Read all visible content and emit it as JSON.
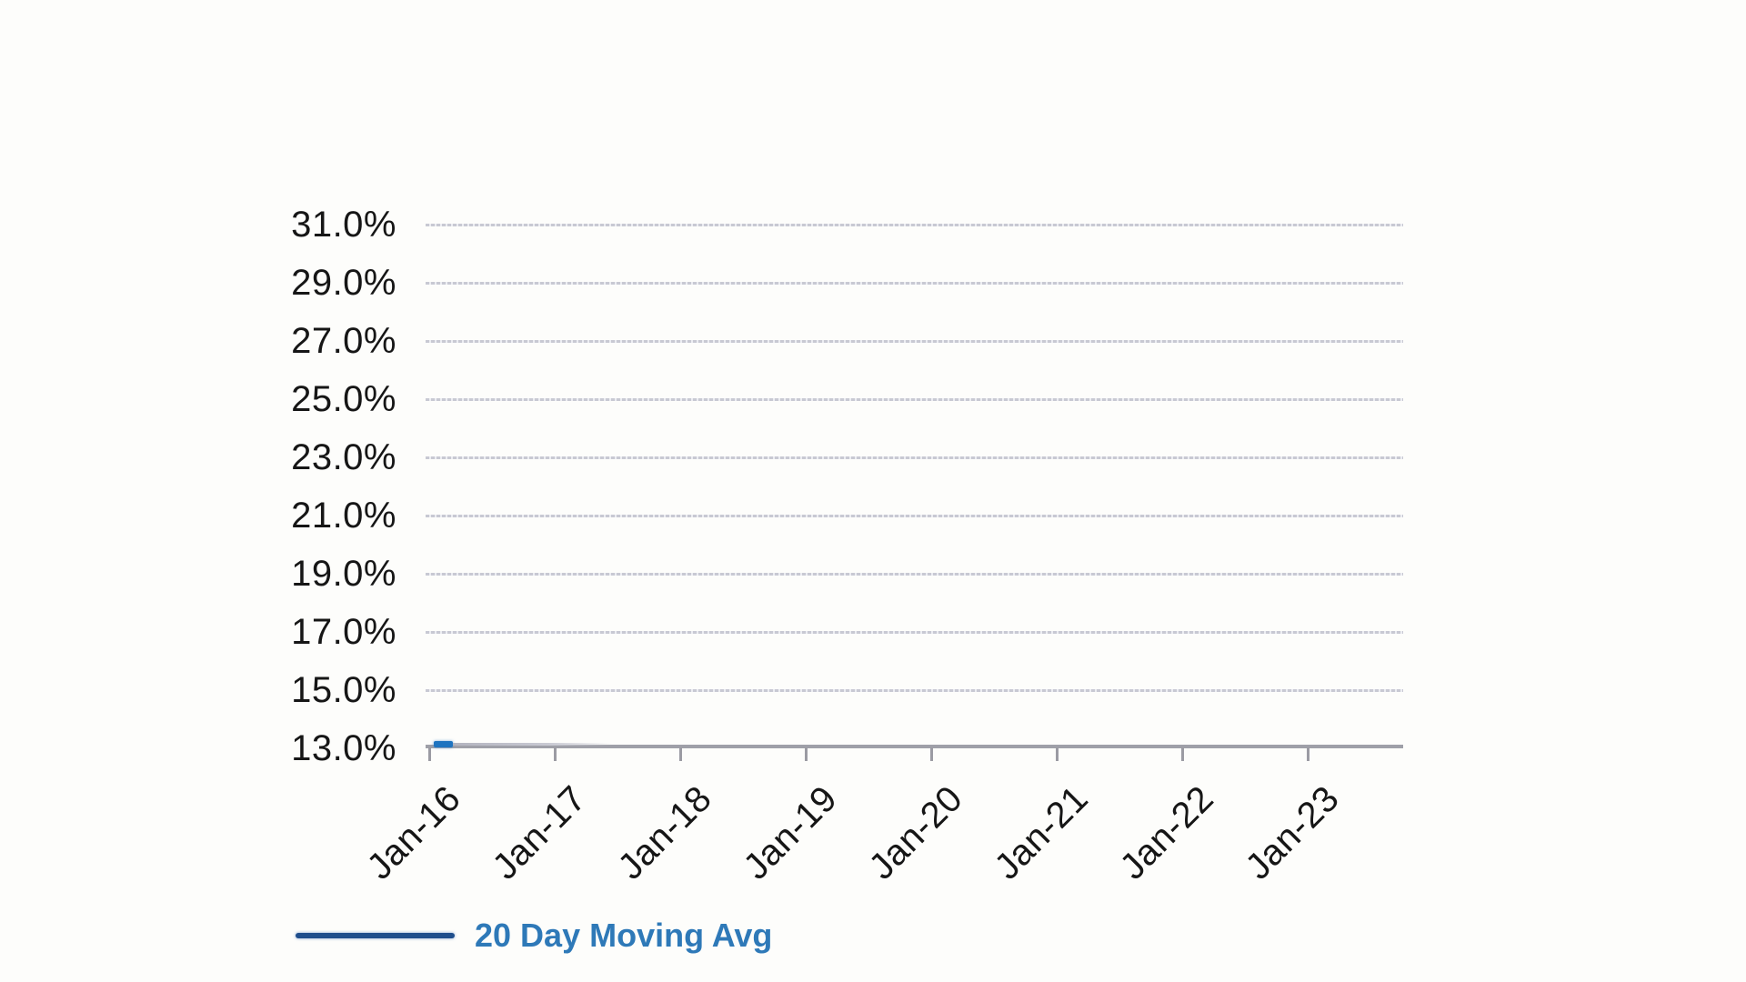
{
  "chart_data": {
    "type": "line",
    "title": "",
    "xlabel": "",
    "ylabel": "",
    "x_categories": [
      "Jan-16",
      "Jan-17",
      "Jan-18",
      "Jan-19",
      "Jan-20",
      "Jan-21",
      "Jan-22",
      "Jan-23"
    ],
    "y_tick_labels": [
      "31.0%",
      "29.0%",
      "27.0%",
      "25.0%",
      "23.0%",
      "21.0%",
      "19.0%",
      "17.0%",
      "15.0%",
      "13.0%"
    ],
    "y_tick_values": [
      31.0,
      29.0,
      27.0,
      25.0,
      23.0,
      21.0,
      19.0,
      17.0,
      15.0,
      13.0
    ],
    "ylim": [
      13.0,
      31.0
    ],
    "grid": "horizontal-only",
    "legend_position": "bottom-left",
    "series": [
      {
        "name": "20 Day Moving Avg",
        "color": "#1e74c0",
        "visible_points": [
          {
            "x": "Jan-16",
            "y": 13.15
          },
          {
            "x": "Feb-16",
            "y": 13.0
          }
        ],
        "note": "Line is visible only as a short segment at about 13.1% near Jan-16, then runs flat along the 13.0% axis minimum."
      }
    ]
  },
  "legend": {
    "label": "20 Day Moving Avg"
  },
  "colors": {
    "background": "#fdfdfb",
    "axis_line": "#9fa0a8",
    "gridline": "#c5c6d1",
    "tick_label_text": "#161616",
    "series_blue": "#1e74c0",
    "legend_line_blue": "#1f4e8c",
    "legend_text_blue": "#2e79b8"
  }
}
